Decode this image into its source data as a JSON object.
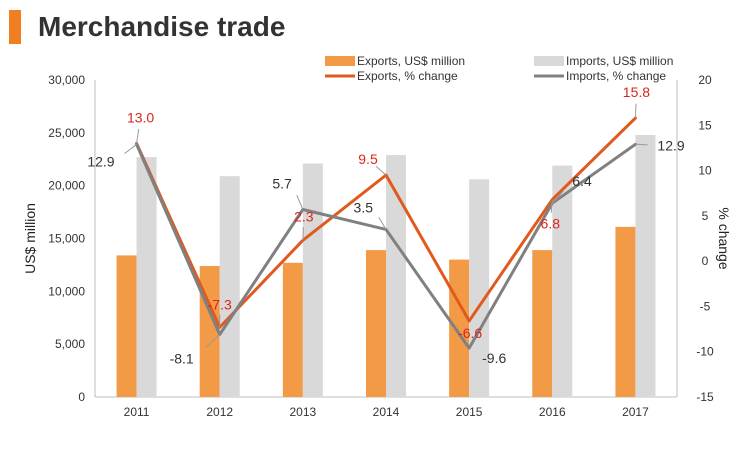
{
  "header": {
    "title": "Merchandise trade"
  },
  "chart_data": {
    "type": "bar",
    "categories": [
      "2011",
      "2012",
      "2013",
      "2014",
      "2015",
      "2016",
      "2017"
    ],
    "ylabel": "US$ million",
    "y2label": "% change",
    "ylim": [
      0,
      30000
    ],
    "y2lim": [
      -15,
      20
    ],
    "y_ticks": [
      "0",
      "5,000",
      "10,000",
      "15,000",
      "20,000",
      "25,000",
      "30,000"
    ],
    "y2_ticks": [
      "-15",
      "-10",
      "-5",
      "0",
      "5",
      "10",
      "15",
      "20"
    ],
    "legend_position": "top-right",
    "series": [
      {
        "name": "Exports, US$ million",
        "type": "bar",
        "axis": "left",
        "color": "#f39a47",
        "values": [
          13400,
          12400,
          12700,
          13900,
          13000,
          13900,
          16100
        ]
      },
      {
        "name": "Imports, US$ million",
        "type": "bar",
        "axis": "left",
        "color": "#d9d9d9",
        "values": [
          22700,
          20900,
          22100,
          22900,
          20600,
          21900,
          24800
        ]
      },
      {
        "name": "Exports, % change",
        "type": "line",
        "axis": "right",
        "color": "#e05a1e",
        "label_color": "#d9261c",
        "values": [
          13.0,
          -7.3,
          2.3,
          9.5,
          -6.6,
          6.8,
          15.8
        ],
        "labels": [
          "13.0",
          "-7.3",
          "2.3",
          "9.5",
          "-6.6",
          "6.8",
          "15.8"
        ]
      },
      {
        "name": "Imports, % change",
        "type": "line",
        "axis": "right",
        "color": "#808080",
        "label_color": "#333333",
        "values": [
          12.9,
          -8.1,
          5.7,
          3.5,
          -9.6,
          6.4,
          12.9
        ],
        "labels": [
          "12.9",
          "-8.1",
          "5.7",
          "3.5",
          "-9.6",
          "6.4",
          "12.9"
        ]
      }
    ]
  }
}
